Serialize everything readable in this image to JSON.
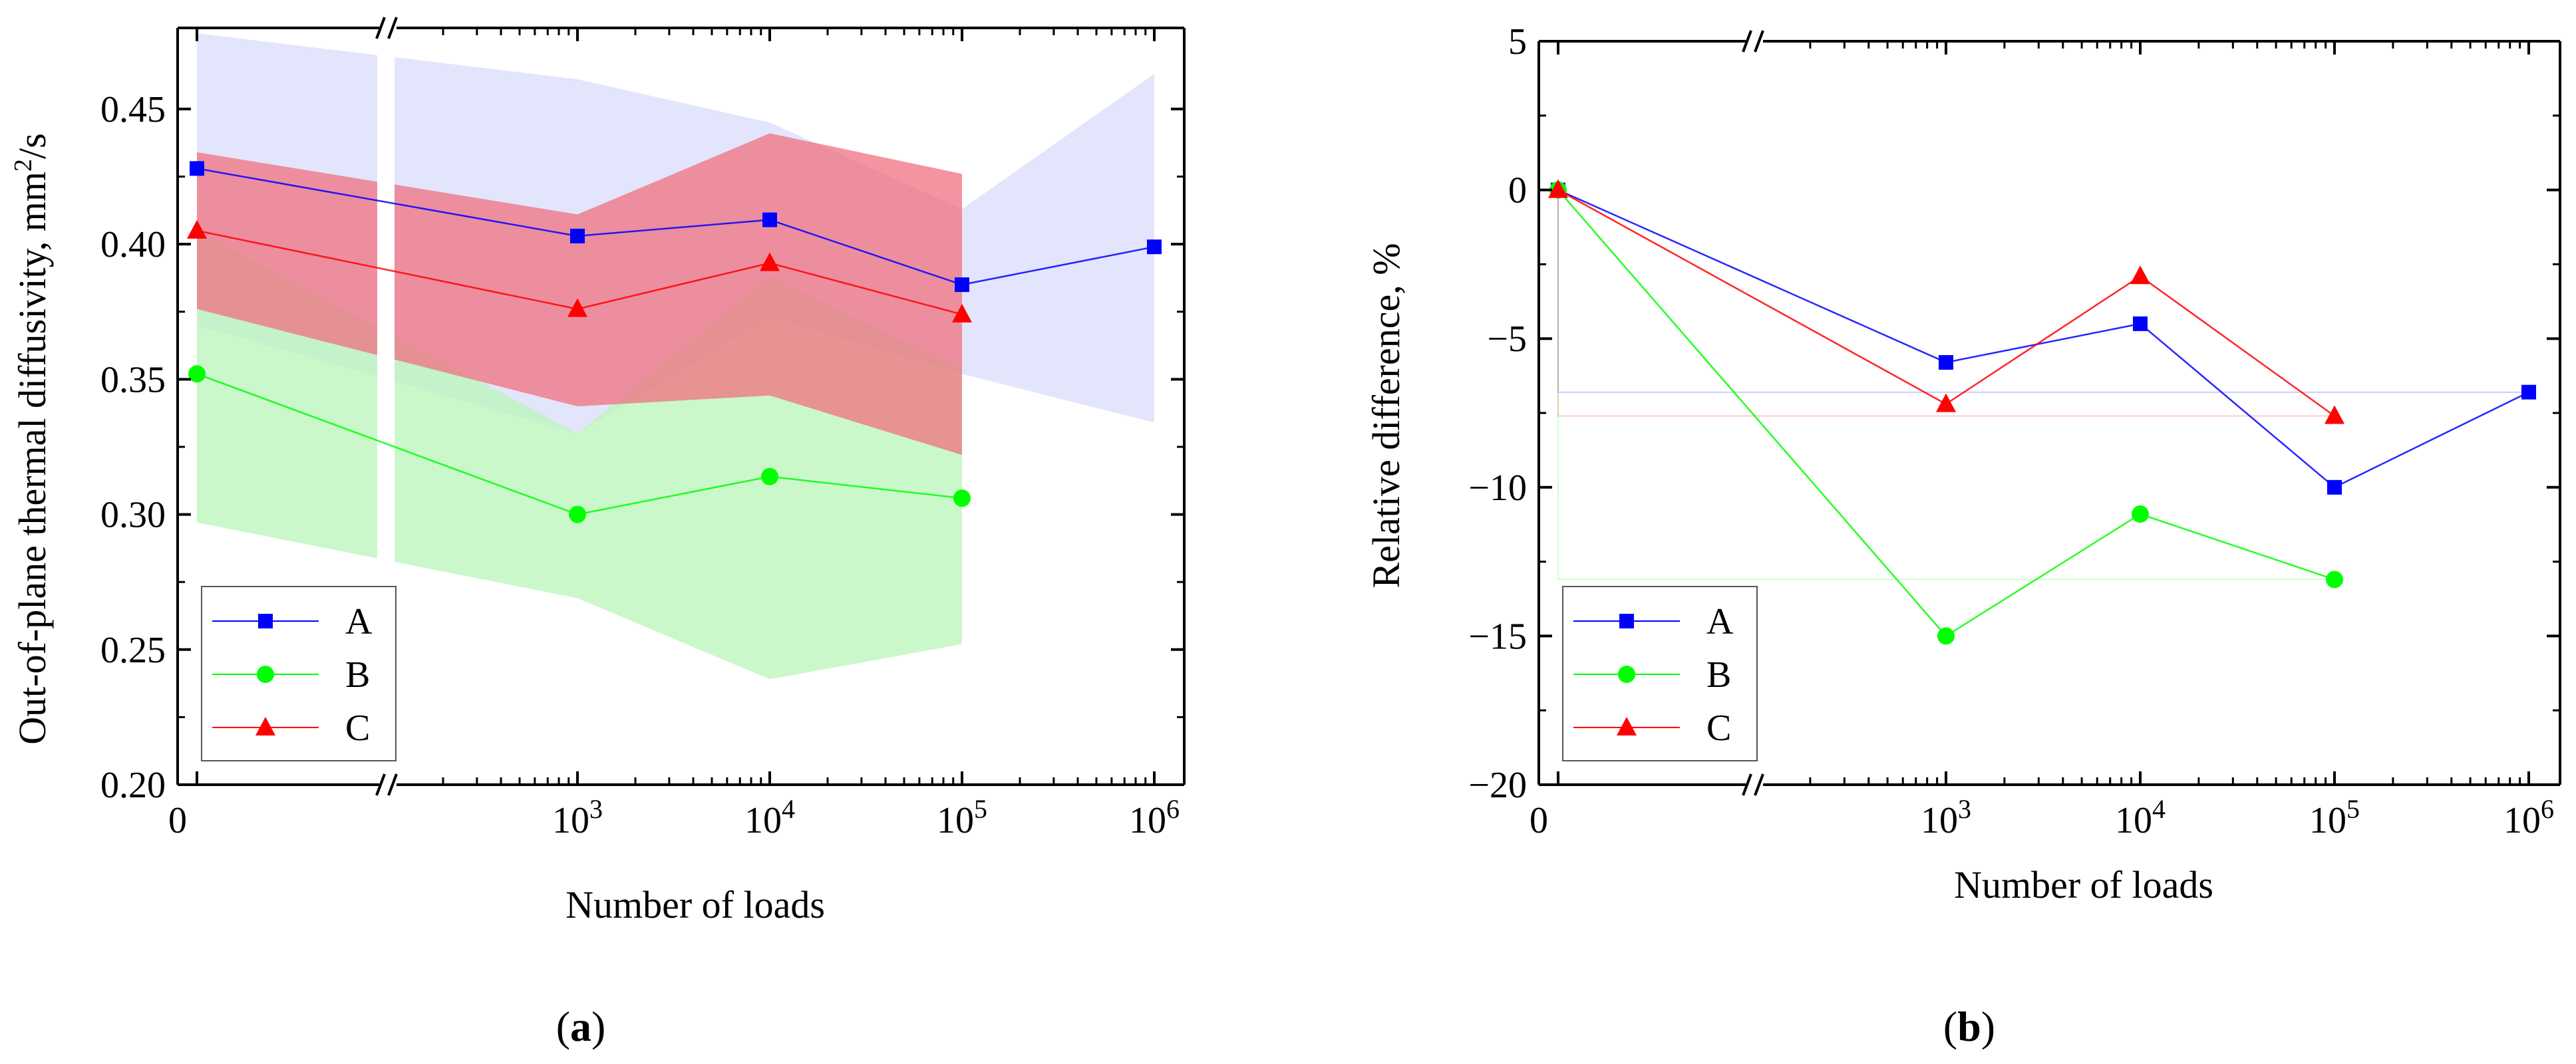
{
  "chart_data": [
    {
      "panel": "a",
      "type": "line",
      "panel_label": "(a)",
      "panel_label_letter": "a",
      "xlabel": "Number of loads",
      "ylabel": "Out-of-plane thermal diffusivity, mm",
      "ylabel_sup": "2",
      "ylabel_suffix": "/s",
      "ylim": [
        0.2,
        0.48
      ],
      "yticks": [
        0.2,
        0.25,
        0.3,
        0.35,
        0.4,
        0.45
      ],
      "ytick_labels": [
        "0.20",
        "0.25",
        "0.30",
        "0.35",
        "0.40",
        "0.45"
      ],
      "x_scale": "log with axis break",
      "xticks": [
        0,
        1000,
        10000,
        100000,
        1000000
      ],
      "xtick_labels": [
        {
          "base": "0",
          "exp": ""
        },
        {
          "base": "10",
          "exp": "3"
        },
        {
          "base": "10",
          "exp": "4"
        },
        {
          "base": "10",
          "exp": "5"
        },
        {
          "base": "10",
          "exp": "6"
        }
      ],
      "legend_position": "bottom-left",
      "series": [
        {
          "name": "A",
          "color": "#0000ff",
          "marker": "square",
          "x": [
            0,
            1000,
            10000,
            100000,
            1000000
          ],
          "values": [
            0.428,
            0.403,
            0.409,
            0.385,
            0.399
          ],
          "band_upper": [
            0.478,
            0.461,
            0.445,
            0.413,
            0.463
          ],
          "band_lower": [
            0.37,
            0.33,
            0.373,
            0.352,
            0.334
          ],
          "band_color": "#d9dcfb"
        },
        {
          "name": "B",
          "color": "#00ff00",
          "marker": "circle",
          "x": [
            0,
            1000,
            10000,
            100000
          ],
          "values": [
            0.352,
            0.3,
            0.314,
            0.306
          ],
          "band_upper": [
            0.405,
            0.33,
            0.388,
            0.354
          ],
          "band_lower": [
            0.297,
            0.269,
            0.239,
            0.252
          ],
          "band_color": "#b9f5b9"
        },
        {
          "name": "C",
          "color": "#ff0000",
          "marker": "triangle",
          "x": [
            0,
            1000,
            10000,
            100000
          ],
          "values": [
            0.405,
            0.376,
            0.393,
            0.374
          ],
          "band_upper": [
            0.434,
            0.411,
            0.441,
            0.426
          ],
          "band_lower": [
            0.376,
            0.34,
            0.344,
            0.322
          ],
          "band_color": "#f07080"
        }
      ]
    },
    {
      "panel": "b",
      "type": "line",
      "panel_label": "(b)",
      "panel_label_letter": "b",
      "xlabel": "Number of loads",
      "ylabel": "Relative difference, %",
      "ylim": [
        -20,
        5
      ],
      "yticks": [
        -20,
        -15,
        -10,
        -5,
        0,
        5
      ],
      "ytick_labels": [
        "−20",
        "−15",
        "−10",
        "−5",
        "0",
        "5"
      ],
      "x_scale": "log with axis break",
      "xticks": [
        0,
        1000,
        10000,
        100000,
        1000000
      ],
      "xtick_labels": [
        {
          "base": "0",
          "exp": ""
        },
        {
          "base": "10",
          "exp": "3"
        },
        {
          "base": "10",
          "exp": "4"
        },
        {
          "base": "10",
          "exp": "5"
        },
        {
          "base": "10",
          "exp": "6"
        }
      ],
      "legend_position": "bottom-left",
      "series": [
        {
          "name": "A",
          "color": "#0000ff",
          "marker": "square",
          "x": [
            0,
            1000,
            10000,
            100000,
            1000000
          ],
          "values": [
            0,
            -5.8,
            -4.5,
            -10.0,
            -6.8
          ]
        },
        {
          "name": "B",
          "color": "#00ff00",
          "marker": "circle",
          "x": [
            0,
            1000,
            10000,
            100000
          ],
          "values": [
            0,
            -15.0,
            -10.9,
            -13.1
          ]
        },
        {
          "name": "C",
          "color": "#ff0000",
          "marker": "triangle",
          "x": [
            0,
            1000,
            10000,
            100000
          ],
          "values": [
            0,
            -7.2,
            -2.9,
            -7.6
          ]
        }
      ]
    }
  ]
}
